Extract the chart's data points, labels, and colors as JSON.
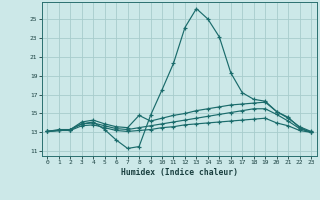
{
  "title": "",
  "xlabel": "Humidex (Indice chaleur)",
  "xlim": [
    -0.5,
    23.5
  ],
  "ylim": [
    10.5,
    26.8
  ],
  "xticks": [
    0,
    1,
    2,
    3,
    4,
    5,
    6,
    7,
    8,
    9,
    10,
    11,
    12,
    13,
    14,
    15,
    16,
    17,
    18,
    19,
    20,
    21,
    22,
    23
  ],
  "yticks": [
    11,
    13,
    15,
    17,
    19,
    21,
    23,
    25
  ],
  "background_color": "#cce8e8",
  "grid_color": "#a8cccc",
  "line_color": "#1a6b6b",
  "series": [
    {
      "x": [
        0,
        1,
        2,
        3,
        4,
        5,
        6,
        7,
        8,
        9,
        10,
        11,
        12,
        13,
        14,
        15,
        16,
        17,
        18,
        19,
        20,
        21,
        22,
        23
      ],
      "y": [
        13.1,
        13.3,
        13.3,
        13.9,
        14.1,
        13.3,
        12.2,
        11.3,
        11.5,
        14.8,
        17.5,
        20.3,
        24.1,
        26.1,
        25.0,
        23.1,
        19.3,
        17.2,
        16.5,
        16.3,
        15.2,
        14.6,
        13.5,
        13.0
      ]
    },
    {
      "x": [
        0,
        1,
        2,
        3,
        4,
        5,
        6,
        7,
        8,
        9,
        10,
        11,
        12,
        13,
        14,
        15,
        16,
        17,
        18,
        19,
        20,
        21,
        22,
        23
      ],
      "y": [
        13.1,
        13.2,
        13.3,
        14.1,
        14.3,
        13.9,
        13.6,
        13.5,
        14.8,
        14.2,
        14.5,
        14.8,
        15.0,
        15.3,
        15.5,
        15.7,
        15.9,
        16.0,
        16.1,
        16.2,
        15.2,
        14.5,
        13.6,
        13.1
      ]
    },
    {
      "x": [
        0,
        1,
        2,
        3,
        4,
        5,
        6,
        7,
        8,
        9,
        10,
        11,
        12,
        13,
        14,
        15,
        16,
        17,
        18,
        19,
        20,
        21,
        22,
        23
      ],
      "y": [
        13.1,
        13.2,
        13.3,
        13.9,
        14.0,
        13.7,
        13.4,
        13.3,
        13.5,
        13.7,
        13.9,
        14.1,
        14.3,
        14.5,
        14.7,
        14.9,
        15.1,
        15.3,
        15.5,
        15.5,
        14.9,
        14.2,
        13.4,
        13.0
      ]
    },
    {
      "x": [
        0,
        1,
        2,
        3,
        4,
        5,
        6,
        7,
        8,
        9,
        10,
        11,
        12,
        13,
        14,
        15,
        16,
        17,
        18,
        19,
        20,
        21,
        22,
        23
      ],
      "y": [
        13.1,
        13.2,
        13.2,
        13.7,
        13.8,
        13.5,
        13.2,
        13.1,
        13.2,
        13.3,
        13.5,
        13.6,
        13.8,
        13.9,
        14.0,
        14.1,
        14.2,
        14.3,
        14.4,
        14.5,
        14.0,
        13.7,
        13.2,
        13.0
      ]
    }
  ]
}
